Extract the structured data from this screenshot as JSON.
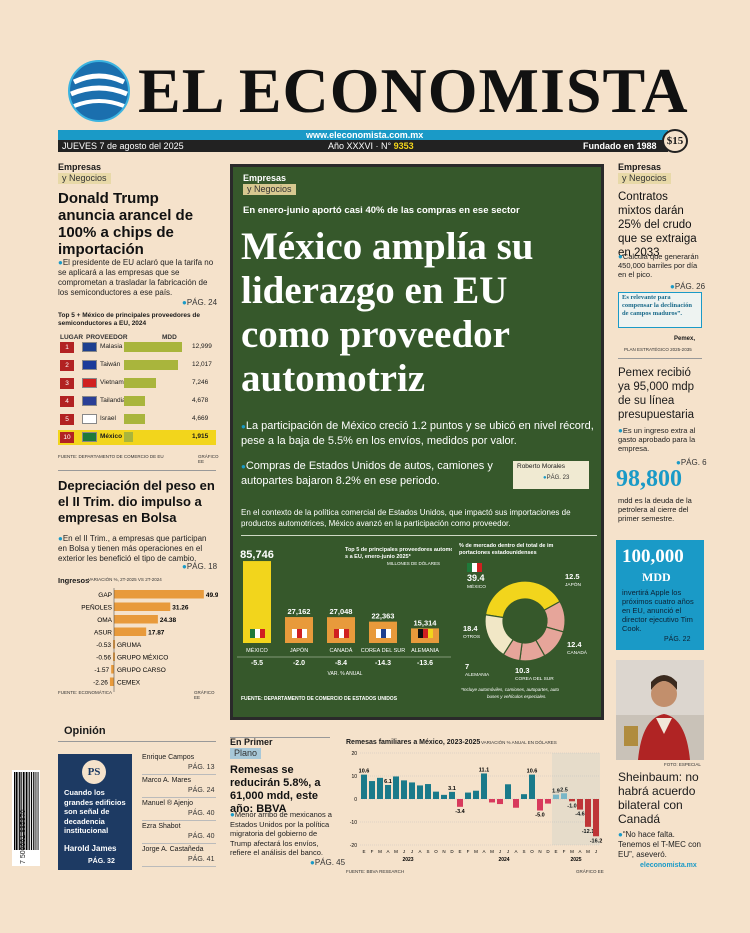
{
  "masthead": {
    "title": "EL ECONOMISTA",
    "date": "JUEVES 7 de agosto del 2025",
    "url": "www.eleconomista.com.mx",
    "edition": "Año XXXVI · N°",
    "edition_number": "9353",
    "founded": "Fundado en 1988",
    "price": "$15"
  },
  "left_top": {
    "section": "Empresas",
    "subsection": "y Negocios",
    "headline": "Donald Trump anuncia arancel de 100% a chips de importación",
    "bullet": "El presidente de EU aclaró que la tarifa no se aplicará a las empresas que se comprometan a trasladar la fabricación de los semiconductores a ese país.",
    "page": "PÁG. 24"
  },
  "chip_table": {
    "title": "Top 5 + México de principales proveedores de semiconductores a EU, 2024",
    "col_rank": "LUGAR",
    "col_provider": "PROVEEDOR",
    "col_mdd": "MDD",
    "rows": [
      {
        "rank": "1",
        "country": "Malasia",
        "value": 12999
      },
      {
        "rank": "2",
        "country": "Taiwán",
        "value": 12017
      },
      {
        "rank": "3",
        "country": "Vietnam",
        "value": 7246
      },
      {
        "rank": "4",
        "country": "Tailandia",
        "value": 4678
      },
      {
        "rank": "5",
        "country": "Israel",
        "value": 4669
      },
      {
        "rank": "10",
        "country": "México",
        "value": 1915
      }
    ],
    "value_labels": [
      "12,999",
      "12,017",
      "7,246",
      "4,678",
      "4,669",
      "1,915"
    ],
    "source": "FUENTE: DEPARTAMENTO DE COMERCIO DE EU",
    "graphic": "GRÁFICO EE"
  },
  "left_mid": {
    "headline": "Depreciación del peso en el II Trim. dio impulso a empresas en Bolsa",
    "bullet": "En el II Trim., a empresas que participan en Bolsa y tienen más operaciones en el exterior les benefició el tipo de cambio.",
    "page": "PÁG. 18"
  },
  "income_chart": {
    "title": "Ingresos",
    "subtitle": "VARIACIÓN %, 2T-2025 VS 2T-2024",
    "items": [
      {
        "name": "GAP",
        "value": 49.91
      },
      {
        "name": "PEÑOLES",
        "value": 31.26
      },
      {
        "name": "OMA",
        "value": 24.38
      },
      {
        "name": "ASUR",
        "value": 17.87
      },
      {
        "name": "GRUMA",
        "value": -0.53
      },
      {
        "name": "GRUPO MÉXICO",
        "value": -0.56
      },
      {
        "name": "GRUPO CARSO",
        "value": -1.57
      },
      {
        "name": "CEMEX",
        "value": -2.26
      }
    ],
    "source": "FUENTE: ECONOMÁTICA",
    "graphic": "GRÁFICO EE"
  },
  "main": {
    "section": "Empresas",
    "subsection": "y Negocios",
    "kicker": "En enero-junio aportó casi 40% de las compras en ese sector",
    "headline": "México amplía su liderazgo en EU como proveedor automotriz",
    "bullet1": "La participación de México creció 1.2 puntos y se ubicó en nivel récord, pese a la baja de 5.5% en los envíos, medidos por valor.",
    "bullet2": "Compras de Estados Unidos de autos, camiones y autopartes bajaron 8.2% en ese periodo.",
    "author": "Roberto Morales",
    "page": "PÁG. 23",
    "lead": "En el contexto de la política comercial de Estados Unidos, que impactó sus importaciones de productos automotrices, México avanzó en la participación como proveedor.",
    "source": "FUENTE: DEPARTAMENTO DE COMERCIO DE ESTADOS UNIDOS",
    "note": "*Incluye automóviles, camiones, autopartes, autobuses y vehículos especiales."
  },
  "auto_chart": {
    "type": "bar",
    "title": "Top 5 de principales proveedores automotrices a EU, enero-junio 2025*",
    "unit": "MILLONES DE DÓLARES",
    "categories": [
      "MÉXICO",
      "JAPÓN",
      "CANADÁ",
      "COREA DEL SUR",
      "ALEMANIA"
    ],
    "values": [
      85746,
      27162,
      27048,
      22363,
      15314
    ],
    "value_labels": [
      "85,746",
      "27,162",
      "27,048",
      "22,363",
      "15,314"
    ],
    "var": [
      "-5.5",
      "-2.0",
      "-8.4",
      "-14.3",
      "-13.6"
    ],
    "var_label": "VAR. % ANUAL"
  },
  "share_chart": {
    "type": "pie",
    "title": "% de mercado dentro del total de importaciones estadounidenses",
    "slices": [
      {
        "name": "MÉXICO",
        "value": 39.4
      },
      {
        "name": "JAPÓN",
        "value": 12.5
      },
      {
        "name": "CANADÁ",
        "value": 12.4
      },
      {
        "name": "COREA DEL SUR",
        "value": 10.3
      },
      {
        "name": "ALEMANIA",
        "value": 7
      },
      {
        "name": "OTROS",
        "value": 18.4
      }
    ],
    "labels": [
      "39.4",
      "12.5",
      "12.4",
      "10.3",
      "7",
      "18.4"
    ]
  },
  "right_top": {
    "section": "Empresas",
    "subsection": "y Negocios",
    "headline": "Contratos mixtos darán 25% del crudo que se extraiga en 2033",
    "bullet": "Calcula que generarán 450,000 barriles por día en el pico.",
    "page": "PÁG. 26",
    "promo": "Es relevante para compensar la declinación de campos maduros”.",
    "promo_who": "Pemex,",
    "promo_src": "PLAN ESTRATÉGICO 2025-2035"
  },
  "right_mid": {
    "headline": "Pemex recibió ya 95,000 mdp de su línea presupuestaria",
    "bullet": "Es un ingreso extra al gasto aprobado para la empresa.",
    "page": "PÁG. 6",
    "big_number": "98,800",
    "desc": "mdd es la deuda de la petrolera al cierre del primer semestre."
  },
  "apple_box": {
    "number": "100,000",
    "unit": "MDD",
    "text": "invertirá Apple los próximos cuatro años en EU, anunció el director ejecutivo Tim Cook.",
    "page": "PÁG. 22"
  },
  "right_bottom": {
    "photo_credit": "FOTO: ESPECIAL",
    "headline": "Sheinbaum: no habrá acuerdo bilateral con Canadá",
    "bullet": "“No hace falta. Tenemos el T-MEC con EU”, aseveró.",
    "url": "eleconomista.mx"
  },
  "opinion": {
    "title": "Opinión",
    "feature_text": "Cuando los grandes edificios son señal de decadencia institucional",
    "feature_author": "Harold James",
    "feature_page": "PÁG. 32",
    "logo": "PS",
    "columns": [
      {
        "name": "Enrique Campos",
        "page": "PÁG. 13"
      },
      {
        "name": "Marco A. Mares",
        "page": "PÁG. 24"
      },
      {
        "name": "Manuel ® Ajenjo",
        "page": "PÁG. 40"
      },
      {
        "name": "Ezra Shabot",
        "page": "PÁG. 40"
      },
      {
        "name": "Jorge A. Castañeda",
        "page": "PÁG. 41"
      }
    ],
    "barcode": "7 509661 885870"
  },
  "primer_plano": {
    "section": "En Primer",
    "subsection": "Plano",
    "headline": "Remesas se reducirán 5.8%, a 61,000 mdd, este año: BBVA",
    "bullet": "Menor arribo de mexicanos a Estados Unidos por la política migratoria del gobierno de Trump afectará los envíos, refiere el análisis del banco.",
    "page": "PÁG. 45"
  },
  "remit_chart": {
    "type": "bar",
    "title": "Remesas familiares a México, 2023-2025",
    "subtitle": "VARIACIÓN % ANUAL EN DÓLARES",
    "months": [
      "E",
      "F",
      "M",
      "A",
      "M",
      "J",
      "J",
      "A",
      "S",
      "O",
      "N",
      "D",
      "E",
      "F",
      "M",
      "A",
      "M",
      "J",
      "J",
      "A",
      "S",
      "O",
      "N",
      "D",
      "E",
      "F",
      "M",
      "A",
      "M",
      "J"
    ],
    "values": [
      10.6,
      7.8,
      9.2,
      6.1,
      9.8,
      8.1,
      7.2,
      5.9,
      6.5,
      3.2,
      1.8,
      3.1,
      -3.4,
      2.8,
      3.6,
      11.1,
      -1.5,
      -2.2,
      6.4,
      -3.8,
      2.1,
      10.6,
      -5.0,
      -2.0,
      1.9,
      2.5,
      -1.0,
      -4.6,
      -12.1,
      -16.2
    ],
    "labels": {
      "0": "10.6",
      "3": "6.1",
      "11": "3.1",
      "12": "-3.4",
      "15": "11.1",
      "21": "10.6",
      "22": "-5.0",
      "24": "1.9",
      "25": "2.5",
      "26": "-1.0",
      "27": "-4.6",
      "28": "-12.1",
      "29": "-16.2"
    },
    "years": [
      "2023",
      "2024",
      "2025"
    ],
    "yticks": [
      "20",
      "10",
      "0",
      "-10",
      "-20"
    ],
    "ylim": [
      -20,
      20
    ],
    "source": "FUENTE: BBVA RESEARCH",
    "graphic": "GRÁFICO EE"
  },
  "colors": {
    "green": "#36582b",
    "teal": "#1a9ac7",
    "yellow": "#f2d51c",
    "orange": "#e89a3b",
    "navy": "#1d3a63"
  }
}
